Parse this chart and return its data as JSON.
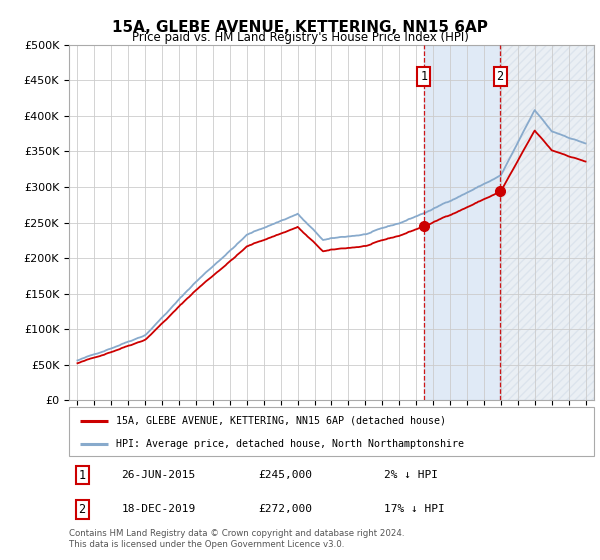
{
  "title": "15A, GLEBE AVENUE, KETTERING, NN15 6AP",
  "subtitle": "Price paid vs. HM Land Registry's House Price Index (HPI)",
  "legend_label_red": "15A, GLEBE AVENUE, KETTERING, NN15 6AP (detached house)",
  "legend_label_blue": "HPI: Average price, detached house, North Northamptonshire",
  "sale1_date": "26-JUN-2015",
  "sale1_price": 245000,
  "sale1_pct": "2%",
  "sale1_label": "1",
  "sale1_year": 2015.46,
  "sale2_date": "18-DEC-2019",
  "sale2_price": 272000,
  "sale2_pct": "17%",
  "sale2_label": "2",
  "sale2_year": 2019.96,
  "footer": "Contains HM Land Registry data © Crown copyright and database right 2024.\nThis data is licensed under the Open Government Licence v3.0.",
  "ylim": [
    0,
    500000
  ],
  "yticks": [
    0,
    50000,
    100000,
    150000,
    200000,
    250000,
    300000,
    350000,
    400000,
    450000,
    500000
  ],
  "xlim_left": 1994.5,
  "xlim_right": 2025.5,
  "background_color": "#ffffff",
  "grid_color": "#cccccc",
  "red_color": "#cc0000",
  "blue_color": "#88aacc",
  "shade_color": "#ccddf0",
  "hatch_color": "#bbccdd"
}
